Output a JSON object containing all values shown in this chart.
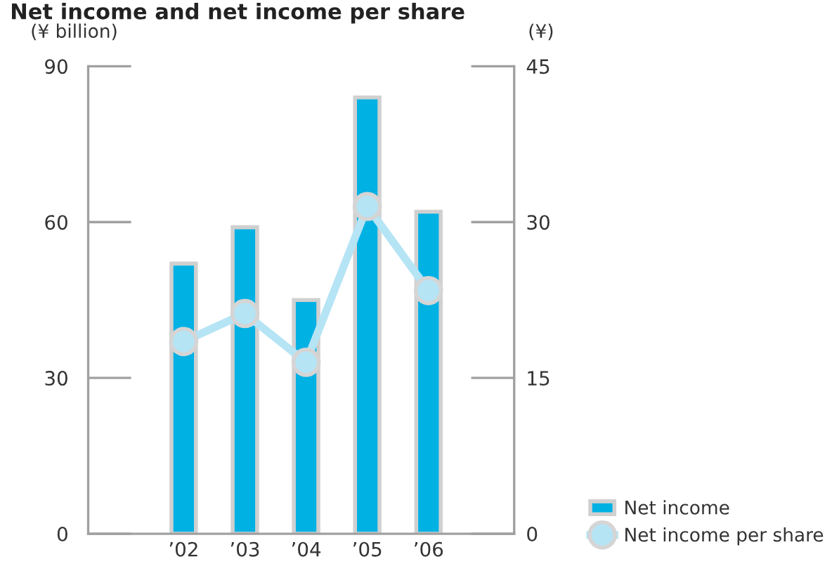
{
  "chart_data": {
    "type": "bar",
    "title": "Net income and net income per share",
    "ylabel": "(¥ billion)",
    "y2label": "(¥)",
    "categories": [
      "’02",
      "’03",
      "’04",
      "’05",
      "’06"
    ],
    "series": [
      {
        "name": "Net income",
        "color": "#00b1e4",
        "values": [
          52,
          59,
          45,
          84,
          62
        ]
      },
      {
        "name": "Net income per share",
        "type": "line",
        "axis": "y2",
        "color": "#b5e4f5",
        "values": [
          18.5,
          21.2,
          16.5,
          31.5,
          23.4
        ]
      }
    ],
    "ylim": [
      0,
      90
    ],
    "yticks": [
      0,
      30,
      60,
      90
    ],
    "y2lim": [
      0,
      45
    ],
    "y2ticks": [
      0,
      15,
      30,
      45
    ],
    "marker": "circle",
    "legend": "bottom right"
  }
}
